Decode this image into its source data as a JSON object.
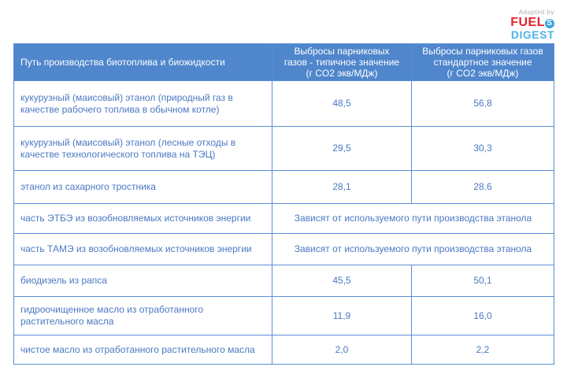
{
  "logo": {
    "adapted_by": "Adapted by",
    "brand_line1": "FUEL",
    "brand_icon": "S",
    "brand_line2": "DIGEST"
  },
  "table": {
    "headers": [
      "Путь производства биотоплива и биожидкости",
      "Выбросы парниковых газов - типичное значение (г CO2 экв/МДж)",
      "Выбросы парниковых газов стандартное значение (г CO2 экв/МДж)"
    ],
    "header_lines": {
      "col2": [
        "Выбросы парниковых",
        "газов - типичное значение",
        "(г CO2 экв/МДж)"
      ],
      "col3": [
        "Выбросы парниковых газов",
        "стандартное значение",
        "(г CO2 экв/МДж)"
      ]
    },
    "rows": [
      {
        "pathway": "кукурузный (маисовый) этанол (природный газ в качестве рабочего топлива в обычном котле)",
        "typical": "48,5",
        "default": "56,8"
      },
      {
        "pathway": "кукурузный (маисовый) этанол (лесные отходы в качестве технологического топлива на ТЭЦ)",
        "typical": "29,5",
        "default": "30,3"
      },
      {
        "pathway": "этанол из сахарного тростника",
        "typical": "28,1",
        "default": "28.6"
      },
      {
        "pathway": "часть ЭТБЭ из возобновляемых источников энергии",
        "merged": "Зависят от используемого пути производства этанола"
      },
      {
        "pathway": "часть ТАМЭ из возобновляемых источников энергии",
        "merged": "Зависят от используемого пути производства этанола"
      },
      {
        "pathway": "биодизель из рапса",
        "typical": "45,5",
        "default": "50,1"
      },
      {
        "pathway": "гидроочищенное масло из отработанного растительного масла",
        "typical": "11,9",
        "default": "16,0"
      },
      {
        "pathway": "чистое масло из отработанного растительного масла",
        "typical": "2,0",
        "default": "2,2"
      }
    ]
  },
  "colors": {
    "header_bg": "#4f86cc",
    "border": "#5b8fd6",
    "cell_text": "#4a78c2",
    "logo_red": "#e0262b",
    "logo_blue": "#4fb3e8"
  }
}
